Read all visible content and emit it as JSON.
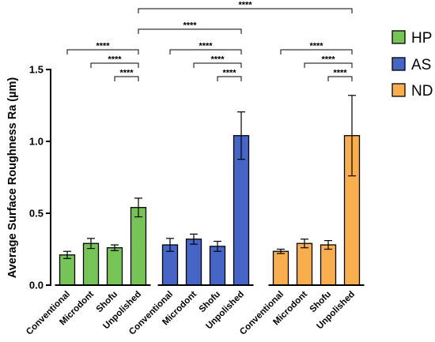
{
  "chart_data": {
    "type": "bar",
    "ylabel": "Average Surface Roughness Ra (µm)",
    "ylim": [
      0,
      1.5
    ],
    "yticks": [
      "0.0",
      "0.5",
      "1.0",
      "1.5"
    ],
    "categories": [
      "Conventional",
      "Microdont",
      "Shofu",
      "Unpolished"
    ],
    "legend_position": "right",
    "grid": false,
    "series": [
      {
        "name": "HP",
        "color": "#76c356",
        "values": [
          0.21,
          0.29,
          0.26,
          0.54
        ],
        "errors": [
          0.025,
          0.035,
          0.02,
          0.065
        ]
      },
      {
        "name": "AS",
        "color": "#4566c6",
        "values": [
          0.28,
          0.32,
          0.27,
          1.04
        ],
        "errors": [
          0.045,
          0.035,
          0.035,
          0.165
        ]
      },
      {
        "name": "ND",
        "color": "#f9ae4d",
        "values": [
          0.235,
          0.29,
          0.28,
          1.04
        ],
        "errors": [
          0.015,
          0.03,
          0.03,
          0.28
        ]
      }
    ],
    "significance": [
      {
        "label": "****",
        "group": 0,
        "from": 0,
        "to": 3
      },
      {
        "label": "****",
        "group": 0,
        "from": 1,
        "to": 3
      },
      {
        "label": "****",
        "group": 0,
        "from": 2,
        "to": 3
      },
      {
        "label": "****",
        "group": 1,
        "from": 0,
        "to": 3
      },
      {
        "label": "****",
        "group": 1,
        "from": 1,
        "to": 3
      },
      {
        "label": "****",
        "group": 1,
        "from": 2,
        "to": 3
      },
      {
        "label": "****",
        "group": 2,
        "from": 0,
        "to": 3
      },
      {
        "label": "****",
        "group": 2,
        "from": 1,
        "to": 3
      },
      {
        "label": "****",
        "group": 2,
        "from": 2,
        "to": 3
      },
      {
        "label": "****",
        "cross": true,
        "from_group": 0,
        "to_group": 1,
        "bar": 3
      },
      {
        "label": "****",
        "cross": true,
        "from_group": 0,
        "to_group": 2,
        "bar": 3
      }
    ]
  }
}
